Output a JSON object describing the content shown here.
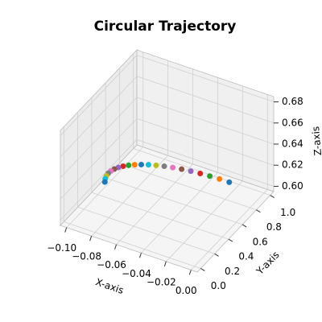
{
  "chart_data": {
    "type": "scatter3d",
    "title": "Circular Trajectory",
    "xlabel": "X-axis",
    "ylabel": "Y-axis",
    "zlabel": "Z-axis",
    "x": [
      0,
      -0.00785,
      -0.01564,
      -0.02334,
      -0.0309,
      -0.03827,
      -0.0454,
      -0.05225,
      -0.05878,
      -0.06494,
      -0.07071,
      -0.07604,
      -0.0809,
      -0.08526,
      -0.0891,
      -0.09239,
      -0.09511,
      -0.09724,
      -0.09877,
      -0.09969,
      -0.1
    ],
    "y": [
      0.5,
      0.5,
      0.5,
      0.5,
      0.5,
      0.5,
      0.5,
      0.5,
      0.5,
      0.5,
      0.5,
      0.5,
      0.5,
      0.5,
      0.5,
      0.5,
      0.5,
      0.5,
      0.5,
      0.5,
      0.5
    ],
    "z": [
      0.64,
      0.63988,
      0.63951,
      0.6389,
      0.63804,
      0.63696,
      0.63564,
      0.6341,
      0.63236,
      0.63042,
      0.62828,
      0.62598,
      0.62351,
      0.6209,
      0.61816,
      0.61531,
      0.61236,
      0.60934,
      0.60626,
      0.60314,
      0.6
    ],
    "colors": [
      "#1f77b4",
      "#ff7f0e",
      "#2ca02c",
      "#d62728",
      "#9467bd",
      "#8c564b",
      "#e377c2",
      "#7f7f7f",
      "#bcbd22",
      "#17becf"
    ],
    "xlim": [
      -0.105,
      0.005
    ],
    "ylim": [
      -0.05,
      1.05
    ],
    "zlim": [
      0.595,
      0.685
    ],
    "xticks": [
      {
        "value": -0.1,
        "label": "−0.10"
      },
      {
        "value": -0.08,
        "label": "−0.08"
      },
      {
        "value": -0.06,
        "label": "−0.06"
      },
      {
        "value": -0.04,
        "label": "−0.04"
      },
      {
        "value": -0.02,
        "label": "−0.02"
      },
      {
        "value": 0,
        "label": "0.00"
      }
    ],
    "yticks": [
      {
        "value": 0,
        "label": "0.0"
      },
      {
        "value": 0.2,
        "label": "0.2"
      },
      {
        "value": 0.4,
        "label": "0.4"
      },
      {
        "value": 0.6,
        "label": "0.6"
      },
      {
        "value": 0.8,
        "label": "0.8"
      },
      {
        "value": 1,
        "label": "1.0"
      }
    ],
    "zticks": [
      {
        "value": 0.6,
        "label": "0.60"
      },
      {
        "value": 0.62,
        "label": "0.62"
      },
      {
        "value": 0.64,
        "label": "0.64"
      },
      {
        "value": 0.66,
        "label": "0.66"
      },
      {
        "value": 0.68,
        "label": "0.68"
      }
    ],
    "grid": true
  }
}
